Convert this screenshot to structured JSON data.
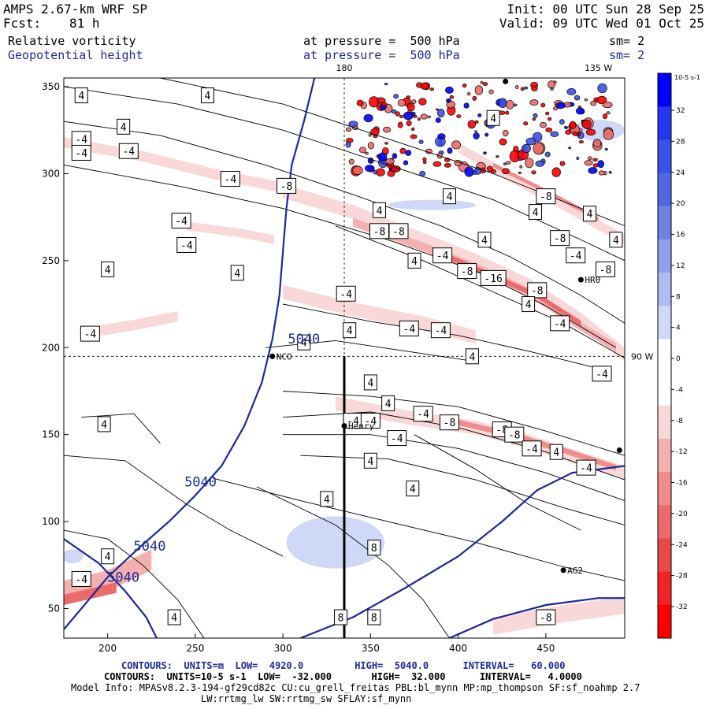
{
  "header": {
    "model_line": "AMPS 2.67-km WRF SP",
    "fcst_label": "Fcst:",
    "fcst_value": "81 h",
    "init": "Init: 00 UTC Sun 28 Sep 25",
    "valid": "Valid: 09 UTC Wed 01 Oct 25",
    "field1": "Relative vorticity",
    "field2": "Geopotential height",
    "pressure1": "at pressure =  500 hPa",
    "pressure2": "at pressure =  500 hPa",
    "sm1": "sm= 2",
    "sm2": "sm= 2",
    "colors": {
      "field1": "#000000",
      "field2": "#1a2a9a"
    }
  },
  "chart_data": {
    "type": "contour",
    "x_ticks": [
      200,
      250,
      300,
      350,
      400,
      450
    ],
    "y_ticks": [
      50,
      100,
      150,
      200,
      250,
      300,
      350
    ],
    "xlim": [
      175,
      495
    ],
    "ylim": [
      33,
      355
    ],
    "top_labels": [
      "180",
      "135 W"
    ],
    "right_label": "90 W",
    "reference_lines": {
      "x": 335,
      "y": 195
    },
    "stations": [
      {
        "name": "NCO",
        "x": 294,
        "y": 195
      },
      {
        "name": "Henry",
        "x": 335,
        "y": 155
      },
      {
        "name": "HR0",
        "x": 470,
        "y": 239
      },
      {
        "name": "AG2",
        "x": 460,
        "y": 72
      },
      {
        "name": "",
        "x": 492,
        "y": 141
      },
      {
        "name": "",
        "x": 427,
        "y": 353
      }
    ],
    "cross_section": {
      "x": 335,
      "y_from": 195,
      "y_to": 33
    },
    "height_contours": {
      "label": "5040",
      "units": "m",
      "color": "#1a2a9a",
      "labels_at": [
        [
          312,
          205
        ],
        [
          253,
          123
        ],
        [
          224,
          86
        ],
        [
          209,
          68
        ]
      ]
    },
    "vorticity_labels": [
      {
        "x": 185,
        "y": 345,
        "v": "4"
      },
      {
        "x": 185,
        "y": 320,
        "v": "-4"
      },
      {
        "x": 209,
        "y": 327,
        "v": "4"
      },
      {
        "x": 185,
        "y": 312,
        "v": "-4"
      },
      {
        "x": 212,
        "y": 313,
        "v": "-4"
      },
      {
        "x": 257,
        "y": 345,
        "v": "4"
      },
      {
        "x": 270,
        "y": 297,
        "v": "-4"
      },
      {
        "x": 302,
        "y": 293,
        "v": "-8"
      },
      {
        "x": 274,
        "y": 243,
        "v": "4"
      },
      {
        "x": 242,
        "y": 273,
        "v": "-4"
      },
      {
        "x": 245,
        "y": 259,
        "v": "-4"
      },
      {
        "x": 200,
        "y": 245,
        "v": "4"
      },
      {
        "x": 190,
        "y": 208,
        "v": "-4"
      },
      {
        "x": 312,
        "y": 203,
        "v": "4"
      },
      {
        "x": 336,
        "y": 231,
        "v": "-4"
      },
      {
        "x": 338,
        "y": 210,
        "v": "4"
      },
      {
        "x": 372,
        "y": 211,
        "v": "-4"
      },
      {
        "x": 390,
        "y": 210,
        "v": "-4"
      },
      {
        "x": 391,
        "y": 253,
        "v": "-4"
      },
      {
        "x": 355,
        "y": 267,
        "v": "-8"
      },
      {
        "x": 366,
        "y": 267,
        "v": "-8"
      },
      {
        "x": 355,
        "y": 279,
        "v": "4"
      },
      {
        "x": 375,
        "y": 250,
        "v": "4"
      },
      {
        "x": 395,
        "y": 287,
        "v": "4"
      },
      {
        "x": 415,
        "y": 262,
        "v": "4"
      },
      {
        "x": 450,
        "y": 287,
        "v": "-8"
      },
      {
        "x": 444,
        "y": 278,
        "v": "4"
      },
      {
        "x": 458,
        "y": 263,
        "v": "-8"
      },
      {
        "x": 475,
        "y": 277,
        "v": "4"
      },
      {
        "x": 490,
        "y": 262,
        "v": "4"
      },
      {
        "x": 467,
        "y": 253,
        "v": "-4"
      },
      {
        "x": 484,
        "y": 245,
        "v": "-8"
      },
      {
        "x": 405,
        "y": 244,
        "v": "-8"
      },
      {
        "x": 420,
        "y": 240,
        "v": "-16"
      },
      {
        "x": 445,
        "y": 233,
        "v": "-8"
      },
      {
        "x": 440,
        "y": 225,
        "v": "4"
      },
      {
        "x": 458,
        "y": 214,
        "v": "-4"
      },
      {
        "x": 482,
        "y": 185,
        "v": "-4"
      },
      {
        "x": 420,
        "y": 332,
        "v": "4"
      },
      {
        "x": 408,
        "y": 195,
        "v": "4"
      },
      {
        "x": 350,
        "y": 180,
        "v": "4"
      },
      {
        "x": 340,
        "y": 158,
        "v": "-4"
      },
      {
        "x": 350,
        "y": 158,
        "v": "-4"
      },
      {
        "x": 360,
        "y": 168,
        "v": "4"
      },
      {
        "x": 380,
        "y": 162,
        "v": "-4"
      },
      {
        "x": 395,
        "y": 157,
        "v": "-8"
      },
      {
        "x": 425,
        "y": 153,
        "v": "-8"
      },
      {
        "x": 432,
        "y": 150,
        "v": "-8"
      },
      {
        "x": 365,
        "y": 148,
        "v": "-4"
      },
      {
        "x": 442,
        "y": 142,
        "v": "-4"
      },
      {
        "x": 456,
        "y": 140,
        "v": "4"
      },
      {
        "x": 473,
        "y": 131,
        "v": "-4"
      },
      {
        "x": 350,
        "y": 135,
        "v": "4"
      },
      {
        "x": 374,
        "y": 119,
        "v": "4"
      },
      {
        "x": 325,
        "y": 113,
        "v": "4"
      },
      {
        "x": 198,
        "y": 156,
        "v": "4"
      },
      {
        "x": 200,
        "y": 80,
        "v": "4"
      },
      {
        "x": 185,
        "y": 67,
        "v": "-4"
      },
      {
        "x": 238,
        "y": 45,
        "v": "4"
      },
      {
        "x": 333,
        "y": 45,
        "v": "8"
      },
      {
        "x": 352,
        "y": 85,
        "v": "8"
      },
      {
        "x": 352,
        "y": 45,
        "v": "8"
      },
      {
        "x": 450,
        "y": 45,
        "v": "-8"
      }
    ],
    "colorbar": {
      "unit_label": "10-5 s-1",
      "ticks": [
        32,
        28,
        24,
        20,
        16,
        12,
        8,
        4,
        0,
        -4,
        -8,
        -12,
        -16,
        -20,
        -24,
        -28,
        -32
      ],
      "range": [
        -32,
        32
      ],
      "colors": [
        "#0000ff",
        "#2436ef",
        "#3a50e8",
        "#5068e0",
        "#6e84e4",
        "#8ea0ec",
        "#aebcf2",
        "#d0d8f8",
        "#ffffff",
        "#ffffff",
        "#f8d8d8",
        "#f4b0b0",
        "#f08c8c",
        "#ec6a6a",
        "#e84848",
        "#f02424",
        "#ff0000"
      ]
    }
  },
  "footer": {
    "line1": "CONTOURS:  UNITS=m  LOW=  4920.0         HIGH=  5040.0      INTERVAL=   60.000",
    "line2": "CONTOURS:  UNITS=10-5 s-1  LOW=  -32.000       HIGH=  32.000      INTERVAL=   4.0000",
    "line3": "Model Info: MPASv8.2.3-194-gf29cd82c CU:cu_grell_freitas PBL:bl_mynn MP:mp_thompson SF:sf_noahmp 2.7",
    "line4": "LW:rrtmg_lw SW:rrtmg_sw SFLAY:sf_mynn"
  }
}
